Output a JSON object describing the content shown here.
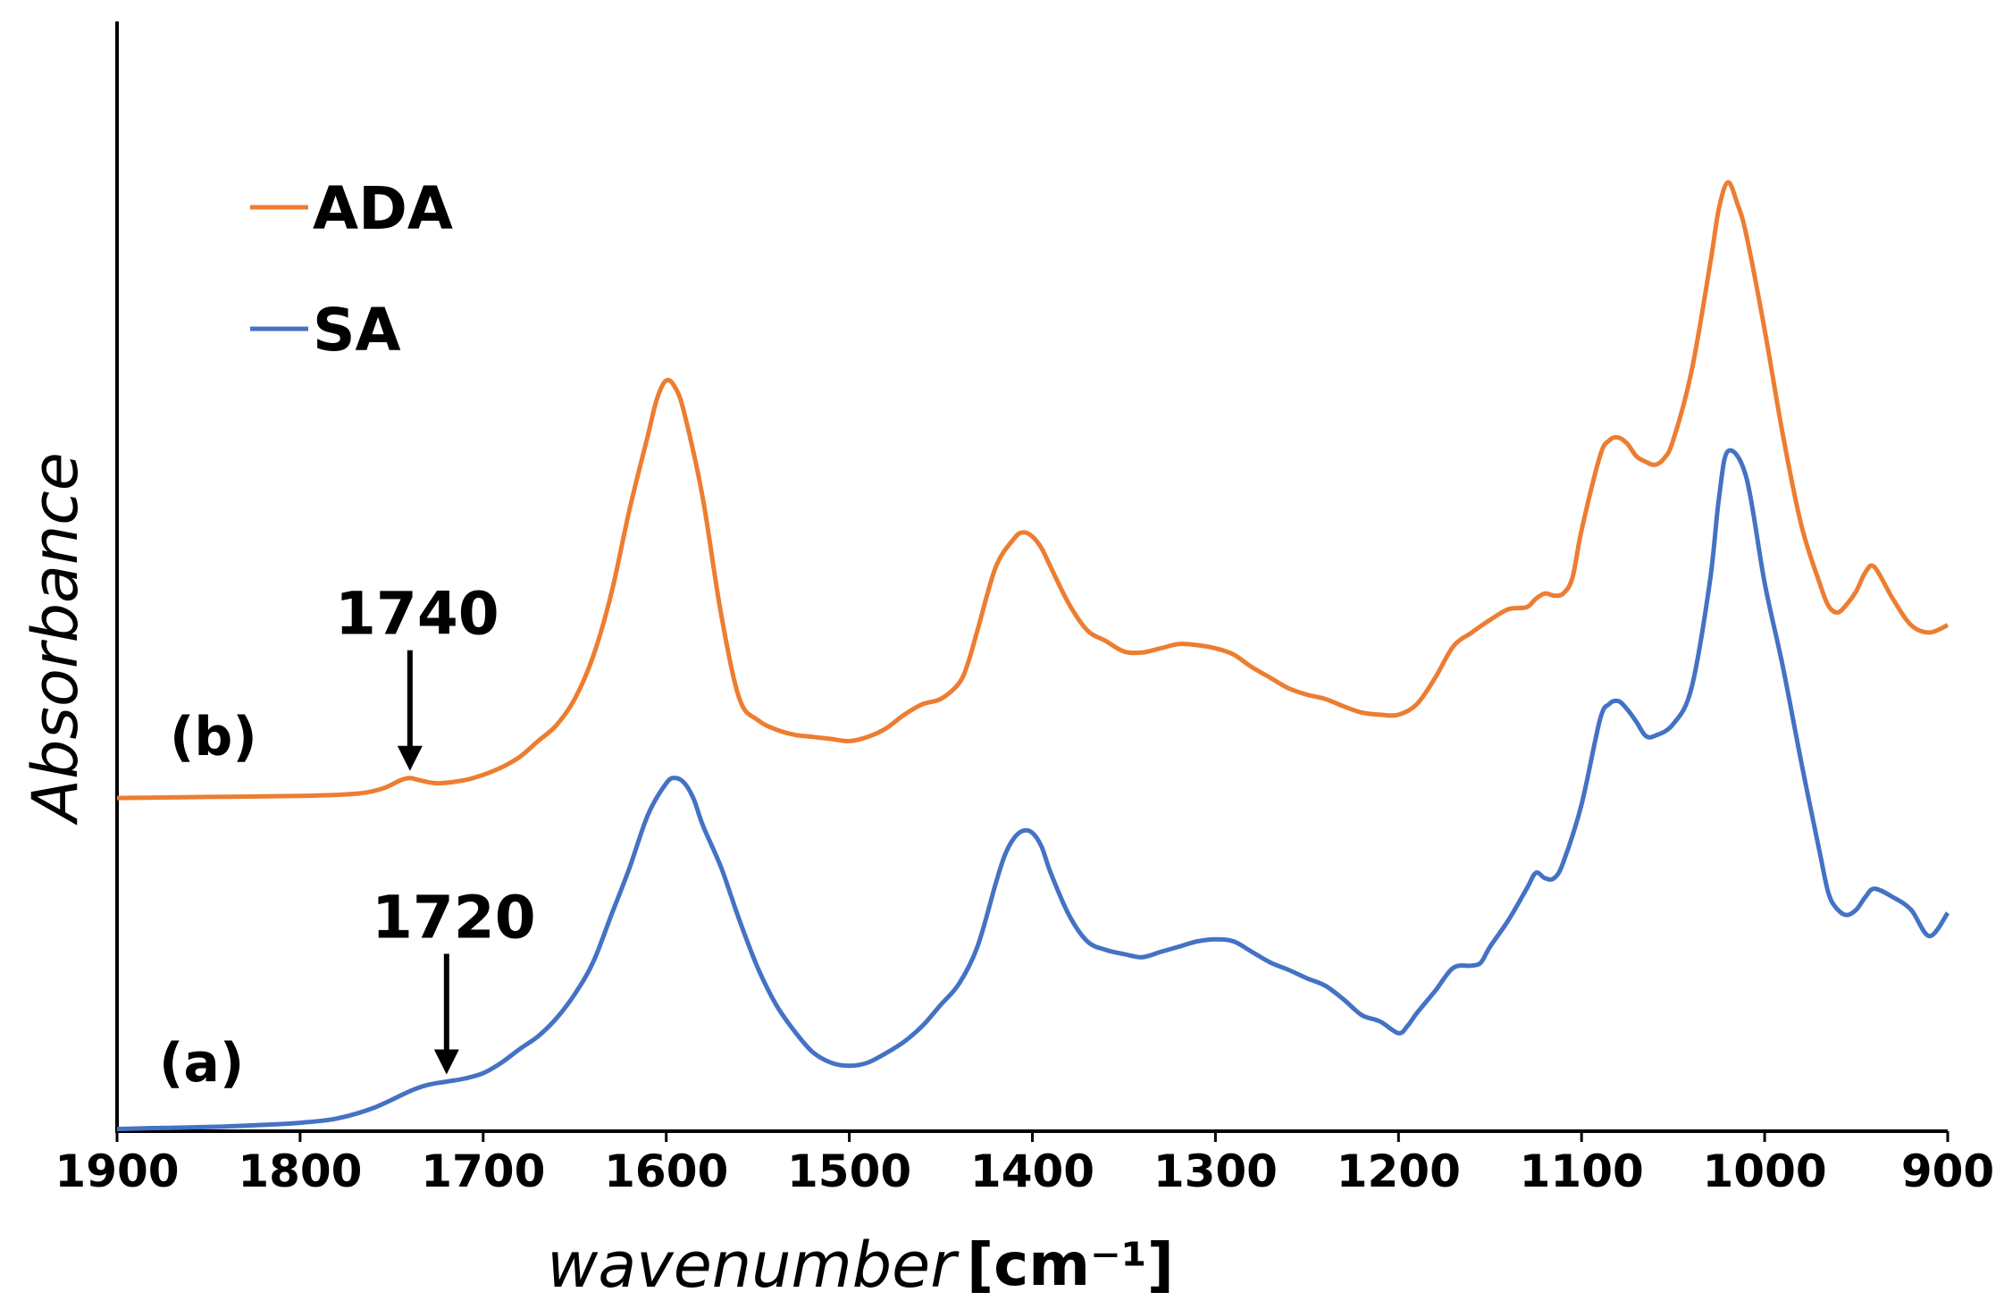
{
  "chart_data": {
    "type": "line",
    "x_axis": {
      "label": "wavenumber",
      "unit": "[cm⁻¹]",
      "min": 900,
      "max": 1900,
      "reversed": true,
      "ticks": [
        1900,
        1800,
        1700,
        1600,
        1500,
        1400,
        1300,
        1200,
        1100,
        1000,
        900
      ]
    },
    "y_axis": {
      "label": "Absorbance",
      "ticks_shown": false,
      "range": [
        0,
        1
      ]
    },
    "grid": false,
    "legend": {
      "placement": "top-left",
      "entries": [
        {
          "name": "ADA",
          "color": "#ED7D31"
        },
        {
          "name": "SA",
          "color": "#4472C4"
        }
      ]
    },
    "series": [
      {
        "name": "ADA",
        "curve_label": "(b)",
        "color": "#ED7D31",
        "x": [
          1900,
          1850,
          1800,
          1770,
          1755,
          1745,
          1740,
          1735,
          1725,
          1710,
          1700,
          1690,
          1680,
          1670,
          1660,
          1650,
          1640,
          1630,
          1620,
          1610,
          1605,
          1600,
          1595,
          1590,
          1580,
          1570,
          1560,
          1550,
          1540,
          1530,
          1520,
          1510,
          1500,
          1490,
          1480,
          1470,
          1460,
          1450,
          1440,
          1435,
          1430,
          1420,
          1410,
          1405,
          1400,
          1395,
          1390,
          1380,
          1370,
          1360,
          1350,
          1340,
          1330,
          1320,
          1310,
          1300,
          1290,
          1280,
          1270,
          1260,
          1250,
          1240,
          1230,
          1220,
          1210,
          1200,
          1190,
          1180,
          1170,
          1160,
          1150,
          1140,
          1130,
          1125,
          1120,
          1115,
          1110,
          1105,
          1100,
          1090,
          1085,
          1080,
          1075,
          1070,
          1065,
          1060,
          1055,
          1050,
          1040,
          1030,
          1025,
          1020,
          1015,
          1010,
          1000,
          990,
          980,
          970,
          965,
          960,
          955,
          950,
          945,
          940,
          930,
          920,
          910,
          900
        ],
        "y": [
          0.316,
          0.317,
          0.318,
          0.32,
          0.325,
          0.333,
          0.335,
          0.333,
          0.33,
          0.333,
          0.338,
          0.345,
          0.355,
          0.37,
          0.385,
          0.41,
          0.45,
          0.51,
          0.59,
          0.66,
          0.695,
          0.712,
          0.705,
          0.68,
          0.6,
          0.49,
          0.41,
          0.39,
          0.381,
          0.376,
          0.374,
          0.372,
          0.37,
          0.374,
          0.382,
          0.395,
          0.405,
          0.41,
          0.425,
          0.445,
          0.475,
          0.535,
          0.562,
          0.568,
          0.564,
          0.553,
          0.535,
          0.5,
          0.475,
          0.465,
          0.455,
          0.454,
          0.458,
          0.462,
          0.461,
          0.458,
          0.452,
          0.44,
          0.43,
          0.42,
          0.414,
          0.41,
          0.403,
          0.397,
          0.395,
          0.395,
          0.405,
          0.43,
          0.46,
          0.473,
          0.485,
          0.495,
          0.497,
          0.505,
          0.51,
          0.508,
          0.51,
          0.525,
          0.57,
          0.64,
          0.655,
          0.658,
          0.652,
          0.64,
          0.635,
          0.632,
          0.638,
          0.655,
          0.72,
          0.82,
          0.875,
          0.9,
          0.88,
          0.85,
          0.76,
          0.66,
          0.575,
          0.52,
          0.498,
          0.492,
          0.5,
          0.512,
          0.53,
          0.535,
          0.505,
          0.48,
          0.473,
          0.48
        ]
      },
      {
        "name": "SA",
        "curve_label": "(a)",
        "color": "#4472C4",
        "x": [
          1900,
          1880,
          1850,
          1820,
          1800,
          1780,
          1760,
          1740,
          1730,
          1720,
          1710,
          1700,
          1690,
          1680,
          1670,
          1660,
          1650,
          1640,
          1630,
          1620,
          1610,
          1600,
          1595,
          1590,
          1585,
          1580,
          1570,
          1560,
          1550,
          1540,
          1530,
          1520,
          1510,
          1500,
          1490,
          1480,
          1470,
          1460,
          1450,
          1440,
          1430,
          1420,
          1415,
          1410,
          1405,
          1400,
          1395,
          1390,
          1380,
          1370,
          1360,
          1350,
          1340,
          1330,
          1320,
          1310,
          1300,
          1290,
          1280,
          1270,
          1260,
          1250,
          1240,
          1230,
          1220,
          1210,
          1200,
          1195,
          1190,
          1180,
          1170,
          1160,
          1155,
          1150,
          1140,
          1130,
          1125,
          1120,
          1115,
          1110,
          1100,
          1090,
          1085,
          1080,
          1075,
          1070,
          1065,
          1060,
          1050,
          1040,
          1030,
          1025,
          1020,
          1010,
          1000,
          990,
          980,
          970,
          965,
          960,
          955,
          950,
          945,
          940,
          930,
          920,
          910,
          900
        ],
        "y": [
          0.002,
          0.003,
          0.004,
          0.006,
          0.008,
          0.012,
          0.022,
          0.038,
          0.044,
          0.047,
          0.05,
          0.055,
          0.065,
          0.078,
          0.09,
          0.107,
          0.13,
          0.16,
          0.205,
          0.25,
          0.3,
          0.33,
          0.335,
          0.33,
          0.315,
          0.29,
          0.25,
          0.2,
          0.155,
          0.12,
          0.095,
          0.075,
          0.065,
          0.062,
          0.065,
          0.074,
          0.085,
          0.1,
          0.12,
          0.14,
          0.175,
          0.235,
          0.262,
          0.278,
          0.285,
          0.283,
          0.27,
          0.245,
          0.205,
          0.18,
          0.172,
          0.168,
          0.165,
          0.17,
          0.175,
          0.18,
          0.182,
          0.18,
          0.17,
          0.16,
          0.153,
          0.145,
          0.138,
          0.125,
          0.11,
          0.104,
          0.093,
          0.1,
          0.112,
          0.133,
          0.155,
          0.157,
          0.16,
          0.175,
          0.2,
          0.23,
          0.245,
          0.24,
          0.24,
          0.255,
          0.31,
          0.39,
          0.405,
          0.408,
          0.4,
          0.388,
          0.375,
          0.375,
          0.386,
          0.42,
          0.52,
          0.6,
          0.645,
          0.62,
          0.52,
          0.44,
          0.35,
          0.265,
          0.225,
          0.21,
          0.205,
          0.21,
          0.222,
          0.23,
          0.222,
          0.21,
          0.185,
          0.207
        ]
      }
    ],
    "annotations": [
      {
        "text": "1740",
        "x": 1740,
        "series": "ADA"
      },
      {
        "text": "1720",
        "x": 1720,
        "series": "SA"
      }
    ]
  }
}
